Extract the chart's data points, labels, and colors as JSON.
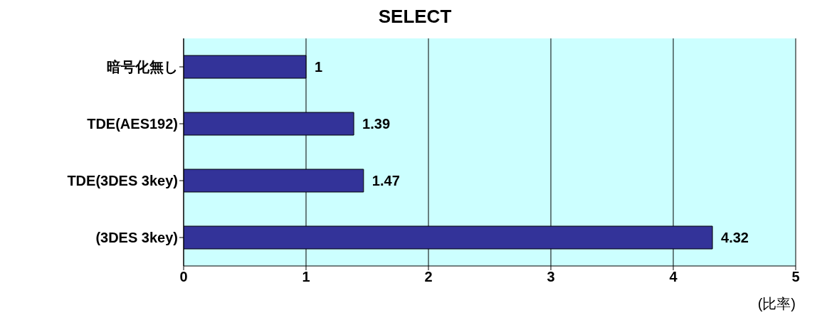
{
  "chart_data": {
    "type": "bar",
    "orientation": "horizontal",
    "title": "SELECT",
    "xlabel": "(比率)",
    "categories": [
      "暗号化無し",
      "TDE(AES192)",
      "TDE(3DES 3key)",
      "(3DES 3key)"
    ],
    "values": [
      1,
      1.39,
      1.47,
      4.32
    ],
    "color": "#333399",
    "xlim": [
      0,
      5
    ],
    "xticks": [
      0,
      1,
      2,
      3,
      4,
      5
    ],
    "grid": "x",
    "data_labels": true,
    "legend": false
  }
}
